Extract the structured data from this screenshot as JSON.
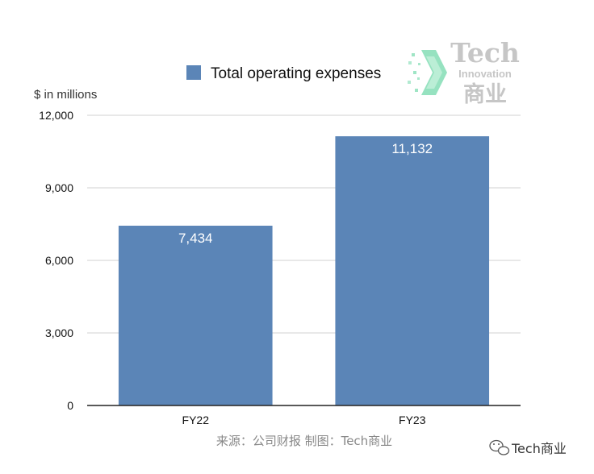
{
  "chart_data": {
    "type": "bar",
    "categories": [
      "FY22",
      "FY23"
    ],
    "series": [
      {
        "name": "Total operating expenses",
        "values": [
          7434,
          11132
        ],
        "color": "#5b85b7"
      }
    ],
    "data_labels": [
      "7,434",
      "11,132"
    ],
    "ylim": [
      0,
      12000
    ],
    "yticks": [
      0,
      3000,
      6000,
      9000,
      12000
    ],
    "ytick_labels": [
      "0",
      "3,000",
      "6,000",
      "9,000",
      "12,000"
    ],
    "ylabel": "$ in millions",
    "xlabel": "",
    "grid": true,
    "legend_position": "top"
  },
  "source_text": "来源：公司财报 制图：Tech商业",
  "watermark": {
    "title": "Tech",
    "subtitle": "Innovation",
    "chinese": "商业"
  },
  "badge": {
    "icon": "wechat-icon",
    "text": "Tech商业"
  },
  "colors": {
    "bar": "#5b85b7",
    "grid": "#d0d0d0",
    "axis": "#222222",
    "watermark_arrow": "#3fcb8c",
    "watermark_arrow_light": "#bff0d8"
  }
}
